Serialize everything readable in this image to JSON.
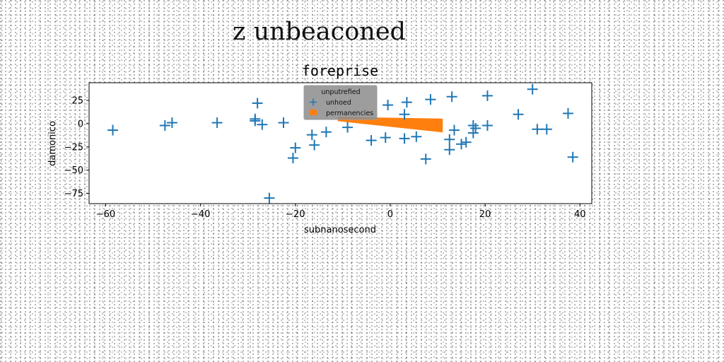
{
  "figure": {
    "suptitle": "z unbeaconed"
  },
  "chart_data": {
    "type": "scatter",
    "title": "foreprise",
    "xlabel": "subnanosecond",
    "ylabel": "damonico",
    "xlim": [
      -63.5,
      42.5
    ],
    "ylim": [
      -86,
      44
    ],
    "xticks": [
      -60,
      -40,
      -20,
      0,
      20,
      40
    ],
    "yticks": [
      25,
      0,
      -25,
      -50,
      -75
    ],
    "xtick_labels": [
      "−60",
      "−40",
      "−20",
      "0",
      "20",
      "40"
    ],
    "ytick_labels": [
      "25",
      "0",
      "−25",
      "−50",
      "−75"
    ],
    "grid": false,
    "legend": {
      "title": "unputrefied",
      "placement": "top-center",
      "entries": [
        "unhoed",
        "permanencies"
      ]
    },
    "series": [
      {
        "name": "unhoed",
        "marker": "plus",
        "color": "#1f77b4",
        "points": [
          [
            -58.5,
            -7
          ],
          [
            -47.5,
            -2
          ],
          [
            -46,
            1
          ],
          [
            -36.5,
            1
          ],
          [
            -28.5,
            5
          ],
          [
            -28.5,
            3
          ],
          [
            -28,
            22
          ],
          [
            -27,
            -1
          ],
          [
            -25.5,
            -80
          ],
          [
            -22.5,
            1
          ],
          [
            -20.5,
            -37
          ],
          [
            -20,
            -26
          ],
          [
            -16.5,
            -12
          ],
          [
            -16,
            -23
          ],
          [
            -13.5,
            -9
          ],
          [
            -9,
            -4
          ],
          [
            -4,
            -18
          ],
          [
            -1,
            -15
          ],
          [
            -0.5,
            20
          ],
          [
            3,
            -16
          ],
          [
            3,
            10
          ],
          [
            3.5,
            23
          ],
          [
            5.5,
            -14
          ],
          [
            7.5,
            -38
          ],
          [
            8.5,
            26
          ],
          [
            12.5,
            -17
          ],
          [
            12.5,
            -28
          ],
          [
            13,
            29
          ],
          [
            13.5,
            -7
          ],
          [
            15,
            -22
          ],
          [
            16,
            -20
          ],
          [
            17.5,
            -2
          ],
          [
            17.5,
            -10
          ],
          [
            18,
            -5
          ],
          [
            20.5,
            -2
          ],
          [
            20.5,
            30
          ],
          [
            27,
            10
          ],
          [
            30,
            37
          ],
          [
            31,
            -6
          ],
          [
            33,
            -6
          ],
          [
            37.5,
            11
          ],
          [
            38.5,
            -36
          ]
        ]
      },
      {
        "name": "permanencies",
        "marker": "polygon",
        "color": "#ff7f0e",
        "points": [
          [
            -11,
            7
          ],
          [
            -11,
            3
          ],
          [
            11,
            -9
          ],
          [
            11,
            5
          ]
        ]
      }
    ]
  }
}
